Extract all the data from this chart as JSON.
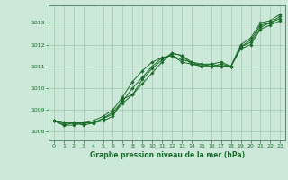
{
  "title": "Graphe pression niveau de la mer (hPa)",
  "bg_color": "#cce8d8",
  "grid_color": "#aaccb8",
  "line_color": "#1a6b2a",
  "spine_color": "#5a8a6a",
  "xlim": [
    -0.5,
    23.5
  ],
  "ylim": [
    1007.6,
    1013.8
  ],
  "yticks": [
    1008,
    1009,
    1010,
    1011,
    1012,
    1013
  ],
  "xticks": [
    0,
    1,
    2,
    3,
    4,
    5,
    6,
    7,
    8,
    9,
    10,
    11,
    12,
    13,
    14,
    15,
    16,
    17,
    18,
    19,
    20,
    21,
    22,
    23
  ],
  "series": [
    [
      1008.5,
      1008.4,
      1008.4,
      1008.4,
      1008.4,
      1008.5,
      1008.7,
      1009.5,
      1009.7,
      1010.4,
      1010.9,
      1011.3,
      1011.6,
      1011.5,
      1011.2,
      1011.0,
      1011.0,
      1011.1,
      1011.0,
      1012.0,
      1012.3,
      1013.0,
      1013.1,
      1013.4
    ],
    [
      1008.5,
      1008.3,
      1008.4,
      1008.3,
      1008.4,
      1008.6,
      1008.8,
      1009.3,
      1009.7,
      1010.2,
      1010.7,
      1011.2,
      1011.6,
      1011.5,
      1011.1,
      1011.0,
      1011.1,
      1011.2,
      1011.0,
      1011.9,
      1012.2,
      1012.9,
      1013.0,
      1013.3
    ],
    [
      1008.5,
      1008.3,
      1008.3,
      1008.4,
      1008.4,
      1008.6,
      1008.9,
      1009.4,
      1010.0,
      1010.5,
      1011.0,
      1011.4,
      1011.5,
      1011.2,
      1011.1,
      1011.1,
      1011.1,
      1011.0,
      1011.0,
      1011.9,
      1012.1,
      1012.8,
      1013.0,
      1013.2
    ],
    [
      1008.5,
      1008.4,
      1008.4,
      1008.4,
      1008.5,
      1008.7,
      1009.0,
      1009.6,
      1010.3,
      1010.8,
      1011.2,
      1011.4,
      1011.5,
      1011.3,
      1011.2,
      1011.1,
      1011.0,
      1011.0,
      1011.0,
      1011.8,
      1012.0,
      1012.7,
      1012.9,
      1013.1
    ]
  ]
}
